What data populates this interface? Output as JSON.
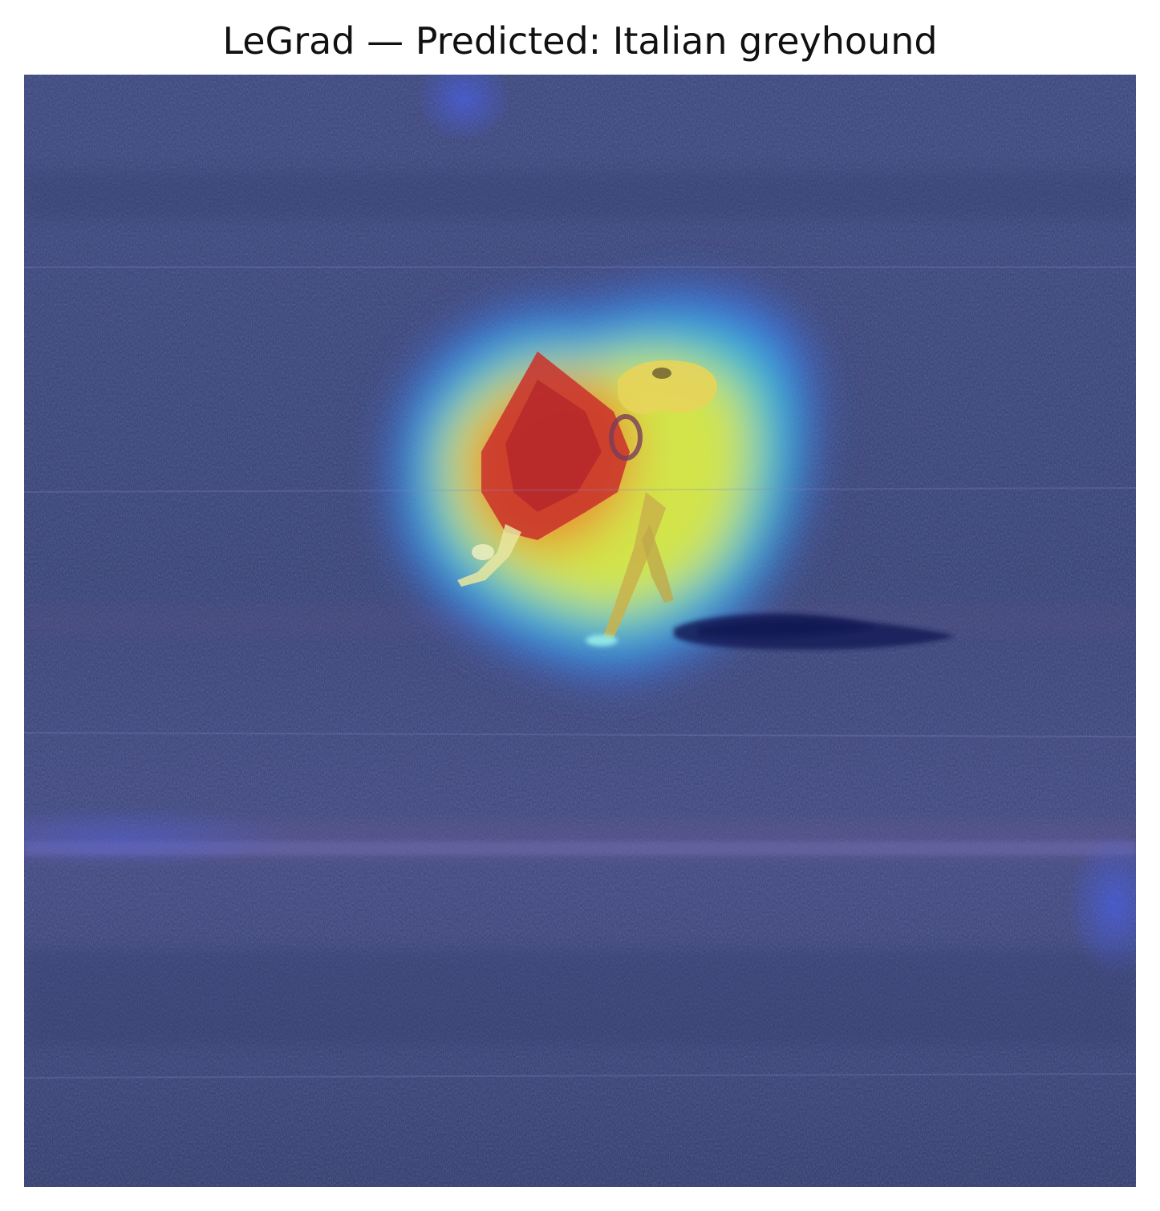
{
  "figure": {
    "title": "LeGrad — Predicted: Italian greyhound",
    "image": {
      "icon": "heatmap-overlay-image",
      "subject": "running dog with red coat on sand",
      "colormap": "jet",
      "colors": {
        "background_dark": "#34406f",
        "background_mid": "#4a5690",
        "heat_low": "#2f5cff",
        "heat_mid_cyan": "#38d6c8",
        "heat_mid_yellow": "#e6ea3a",
        "heat_high": "#e0322a"
      }
    }
  }
}
